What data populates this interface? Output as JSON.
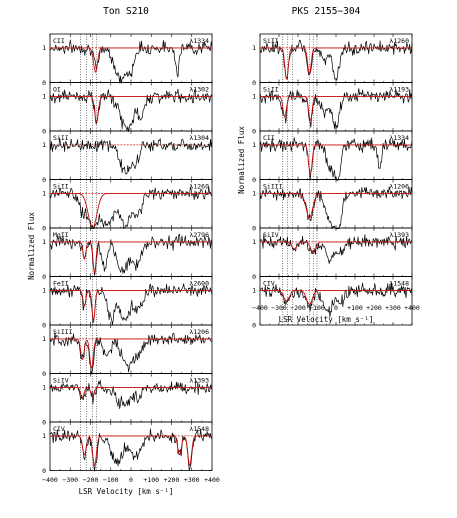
{
  "chart_data": [
    {
      "type": "line",
      "title": "Ton S210",
      "xlabel": "LSR Velocity  [km s⁻¹]",
      "ylabel": "Normalized Flux",
      "xlim": [
        -400,
        400
      ],
      "ylim": [
        0,
        1.4
      ],
      "xticks": [
        -400,
        -300,
        -200,
        -100,
        0,
        100,
        200,
        300,
        400
      ],
      "xtick_labels": [
        "−400",
        "−300",
        "−200",
        "−100",
        "0",
        "+100",
        "+200",
        "+300",
        "+400"
      ],
      "yticks": [
        0,
        1
      ],
      "ytick_labels": [
        "0",
        "1"
      ],
      "component_lines": [
        -250,
        -220,
        -190,
        -170
      ],
      "panels": [
        {
          "ion": "CII",
          "wavelength": "λ1334",
          "abs": [
            [
              -170,
              0.65,
              15
            ],
            [
              -50,
              0.95,
              40
            ],
            [
              0,
              0.55,
              20
            ],
            [
              230,
              0.7,
              12
            ]
          ],
          "model": [
            [
              -175,
              0.7,
              14
            ]
          ]
        },
        {
          "ion": "OI",
          "wavelength": "λ1302",
          "abs": [
            [
              -170,
              0.7,
              14
            ],
            [
              -20,
              0.95,
              45
            ],
            [
              50,
              0.6,
              20
            ]
          ],
          "model": [
            [
              -170,
              0.75,
              13
            ]
          ]
        },
        {
          "ion": "SiII",
          "wavelength": "λ1304",
          "abs": [
            [
              -30,
              0.75,
              35
            ],
            [
              20,
              0.55,
              25
            ]
          ],
          "model": []
        },
        {
          "ion": "SiII",
          "wavelength": "λ1260",
          "abs": [
            [
              -240,
              0.5,
              25
            ],
            [
              -190,
              0.95,
              30
            ],
            [
              -120,
              0.95,
              45
            ],
            [
              -30,
              0.9,
              35
            ],
            [
              30,
              0.6,
              30
            ]
          ],
          "model": [
            [
              -190,
              1.0,
              30
            ]
          ]
        },
        {
          "ion": "MgII",
          "wavelength": "λ2796",
          "abs": [
            [
              -230,
              0.5,
              12
            ],
            [
              -180,
              0.95,
              12
            ],
            [
              -130,
              0.8,
              20
            ],
            [
              -40,
              0.85,
              40
            ],
            [
              30,
              0.6,
              30
            ]
          ],
          "model": [
            [
              -230,
              0.5,
              10
            ],
            [
              -180,
              0.9,
              10
            ]
          ]
        },
        {
          "ion": "FeII",
          "wavelength": "λ2600",
          "abs": [
            [
              -230,
              0.45,
              12
            ],
            [
              -185,
              0.9,
              12
            ],
            [
              -100,
              0.8,
              25
            ],
            [
              -30,
              0.8,
              40
            ],
            [
              40,
              0.5,
              30
            ]
          ],
          "model": [
            [
              -230,
              0.45,
              10
            ],
            [
              -185,
              0.88,
              10
            ]
          ]
        },
        {
          "ion": "SiIII",
          "wavelength": "λ1206",
          "abs": [
            [
              -240,
              0.6,
              15
            ],
            [
              -195,
              0.95,
              15
            ],
            [
              -120,
              0.5,
              25
            ],
            [
              -20,
              0.75,
              40
            ],
            [
              40,
              0.4,
              30
            ]
          ],
          "model": [
            [
              -240,
              0.6,
              12
            ],
            [
              -195,
              0.85,
              12
            ]
          ]
        },
        {
          "ion": "SiIV",
          "wavelength": "λ1393",
          "abs": [
            [
              -240,
              0.35,
              12
            ],
            [
              -190,
              0.3,
              12
            ],
            [
              -40,
              0.5,
              50
            ],
            [
              40,
              0.3,
              25
            ]
          ],
          "model": [
            [
              -240,
              0.3,
              12
            ],
            [
              -190,
              0.25,
              12
            ]
          ]
        },
        {
          "ion": "CIV",
          "wavelength": "λ1548",
          "abs": [
            [
              -230,
              0.6,
              15
            ],
            [
              -180,
              0.9,
              15
            ],
            [
              -70,
              0.8,
              35
            ],
            [
              20,
              0.6,
              40
            ],
            [
              240,
              0.6,
              15
            ],
            [
              290,
              0.9,
              15
            ]
          ],
          "model": [
            [
              -230,
              0.55,
              13
            ],
            [
              -180,
              0.85,
              13
            ],
            [
              240,
              0.55,
              13
            ],
            [
              290,
              0.85,
              13
            ]
          ]
        }
      ]
    },
    {
      "type": "line",
      "title": "PKS 2155−304",
      "xlabel": "LSR Velocity  [km s⁻¹]",
      "ylabel": "Normalized Flux",
      "xlim": [
        -400,
        400
      ],
      "ylim": [
        0,
        1.4
      ],
      "xticks": [
        -400,
        -300,
        -200,
        -100,
        0,
        100,
        200,
        300,
        400
      ],
      "xtick_labels": [
        "−400",
        "−300",
        "−200",
        "−100",
        "0",
        "+100",
        "+200",
        "+300",
        "+400"
      ],
      "yticks": [
        0,
        1
      ],
      "ytick_labels": [
        "0",
        "1"
      ],
      "component_lines": [
        -280,
        -255,
        -230,
        -140,
        -120,
        -100
      ],
      "panels": [
        {
          "ion": "SiII",
          "wavelength": "λ1260",
          "abs": [
            [
              -260,
              0.9,
              15
            ],
            [
              -140,
              0.75,
              15
            ],
            [
              -60,
              0.4,
              20
            ],
            [
              0,
              0.95,
              25
            ]
          ],
          "model": [
            [
              -260,
              0.9,
              13
            ],
            [
              -140,
              0.75,
              13
            ]
          ]
        },
        {
          "ion": "SiII",
          "wavelength": "λ1193",
          "abs": [
            [
              -270,
              0.7,
              15
            ],
            [
              -135,
              0.8,
              15
            ],
            [
              -60,
              0.5,
              25
            ],
            [
              0,
              0.95,
              25
            ]
          ],
          "model": [
            [
              -270,
              0.6,
              13
            ],
            [
              -135,
              0.7,
              13
            ]
          ]
        },
        {
          "ion": "CII",
          "wavelength": "λ1334",
          "abs": [
            [
              -135,
              0.85,
              15
            ],
            [
              -30,
              0.7,
              30
            ],
            [
              10,
              0.95,
              20
            ],
            [
              230,
              0.75,
              12
            ]
          ],
          "model": [
            [
              -135,
              0.85,
              13
            ]
          ]
        },
        {
          "ion": "SiIII",
          "wavelength": "λ1206",
          "abs": [
            [
              -140,
              0.75,
              25
            ],
            [
              -30,
              0.8,
              35
            ],
            [
              10,
              0.95,
              25
            ]
          ],
          "model": [
            [
              -140,
              0.7,
              25
            ]
          ]
        },
        {
          "ion": "SiIV",
          "wavelength": "λ1393",
          "abs": [
            [
              -220,
              0.25,
              20
            ],
            [
              -120,
              0.35,
              25
            ],
            [
              -30,
              0.5,
              35
            ],
            [
              30,
              0.3,
              25
            ]
          ],
          "model": [
            [
              -220,
              0.2,
              20
            ],
            [
              -120,
              0.3,
              20
            ]
          ]
        },
        {
          "ion": "CIV",
          "wavelength": "λ1548",
          "abs": [
            [
              -260,
              0.35,
              25
            ],
            [
              -140,
              0.45,
              25
            ],
            [
              -40,
              0.6,
              35
            ],
            [
              30,
              0.35,
              25
            ]
          ],
          "model": [
            [
              -260,
              0.3,
              22
            ],
            [
              -140,
              0.4,
              22
            ]
          ]
        }
      ]
    }
  ]
}
